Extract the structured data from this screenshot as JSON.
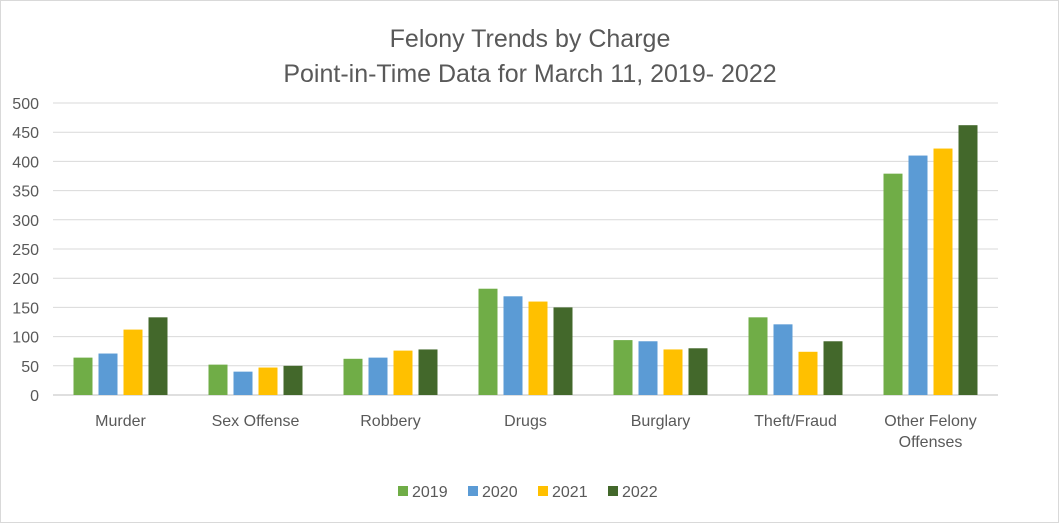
{
  "chart_data": {
    "type": "bar",
    "title": "Felony Trends by Charge",
    "subtitle": "Point-in-Time Data for March 11, 2019- 2022",
    "categories": [
      "Murder",
      "Sex Offense",
      "Robbery",
      "Drugs",
      "Burglary",
      "Theft/Fraud",
      "Other Felony Offenses"
    ],
    "series": [
      {
        "name": "2019",
        "color": "#70ad47",
        "values": [
          64,
          52,
          62,
          182,
          94,
          133,
          379
        ]
      },
      {
        "name": "2020",
        "color": "#5b9bd5",
        "values": [
          71,
          40,
          64,
          169,
          92,
          121,
          410
        ]
      },
      {
        "name": "2021",
        "color": "#ffc000",
        "values": [
          112,
          47,
          76,
          160,
          78,
          74,
          422
        ]
      },
      {
        "name": "2022",
        "color": "#43682b",
        "values": [
          133,
          50,
          78,
          150,
          80,
          92,
          462
        ]
      }
    ],
    "xlabel": "",
    "ylabel": "",
    "ylim": [
      0,
      500
    ],
    "yticks": [
      0,
      50,
      100,
      150,
      200,
      250,
      300,
      350,
      400,
      450,
      500
    ],
    "grid": true,
    "legend": "bottom"
  }
}
